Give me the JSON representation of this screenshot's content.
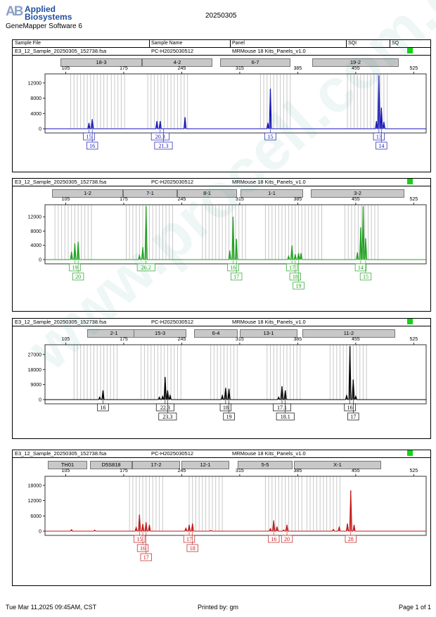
{
  "header": {
    "brand_line1": "Applied",
    "brand_line2": "Biosystems",
    "brand_mark": "AB",
    "software": "GeneMapper Software 6",
    "run_date": "20250305"
  },
  "table_header": {
    "sample_file": "Sample File",
    "sample_name": "Sample Name",
    "panel": "Panel",
    "sqi": "SQI",
    "sq": "SQ"
  },
  "sample": {
    "file": "E3_12_Sample_20250305_152738.fsa",
    "name": "PC-H2025030512",
    "panel": "MRMouse 18 Kits_Panels_v1.0",
    "sq_color": "#16d316"
  },
  "footer": {
    "datetime": "Tue Mar 11,2025 09:45AM, CST",
    "printed_by": "Printed by: gm",
    "page": "Page 1 of 1"
  },
  "watermark": "www.procell.com.cn",
  "chart_data": [
    {
      "type": "line",
      "dye": "blue",
      "color": "#1616b4",
      "x_ticks": [
        105,
        175,
        245,
        315,
        385,
        455,
        525
      ],
      "y_ticks": [
        0,
        4000,
        8000,
        12000
      ],
      "ylim": [
        0,
        14000
      ],
      "xlim": [
        80,
        540
      ],
      "loci": [
        "18-3",
        "4-2",
        "6-7",
        "19-2"
      ],
      "peaks": [
        [
          133,
          1500
        ],
        [
          137,
          2500
        ],
        [
          215,
          2000
        ],
        [
          219,
          2000
        ],
        [
          249,
          3000
        ],
        [
          349,
          1500
        ],
        [
          352,
          10500
        ],
        [
          480,
          2000
        ],
        [
          483,
          14000
        ],
        [
          486,
          5500
        ],
        [
          489,
          1800
        ]
      ],
      "calls": [
        [
          {
            "x": 133,
            "l": "15"
          },
          {
            "x": 219,
            "l": "20.3"
          },
          {
            "x": 352,
            "l": "15"
          },
          {
            "x": 483,
            "l": "13"
          }
        ],
        [
          {
            "x": 137,
            "l": "16"
          },
          {
            "x": 223,
            "l": "21.3"
          },
          {
            "x": 486,
            "l": "14"
          }
        ]
      ],
      "bins": [
        111,
        115,
        119,
        123,
        127,
        131,
        135,
        139,
        143,
        147,
        151,
        155,
        160,
        164,
        168,
        172,
        176,
        204,
        208,
        212,
        216,
        220,
        224,
        228,
        232,
        236,
        240,
        244,
        248,
        252,
        340,
        344,
        348,
        352,
        356,
        360,
        364,
        368,
        372,
        376,
        445,
        449,
        453,
        457,
        461,
        465,
        469,
        473,
        477,
        481,
        485,
        489,
        493
      ]
    },
    {
      "type": "line",
      "dye": "green",
      "color": "#20a020",
      "x_ticks": [
        105,
        175,
        245,
        315,
        385,
        455,
        525
      ],
      "y_ticks": [
        0,
        4000,
        8000,
        12000
      ],
      "ylim": [
        0,
        15000
      ],
      "xlim": [
        80,
        540
      ],
      "loci": [
        "1-2",
        "7-1",
        "8-1",
        "1-1",
        "3-2"
      ],
      "peaks": [
        [
          112,
          2200
        ],
        [
          116,
          4500
        ],
        [
          120,
          5000
        ],
        [
          194,
          1200
        ],
        [
          198,
          3500
        ],
        [
          202,
          15000
        ],
        [
          303,
          2500
        ],
        [
          307,
          12000
        ],
        [
          311,
          5800
        ],
        [
          374,
          1000
        ],
        [
          378,
          4000
        ],
        [
          382,
          1500
        ],
        [
          386,
          1800
        ],
        [
          389,
          1800
        ],
        [
          457,
          2000
        ],
        [
          461,
          9000
        ],
        [
          464,
          15000
        ],
        [
          467,
          6000
        ]
      ],
      "calls": [
        [
          {
            "x": 116,
            "l": "19"
          },
          {
            "x": 202,
            "l": "26.2"
          },
          {
            "x": 307,
            "l": "16"
          },
          {
            "x": 378,
            "l": "17"
          },
          {
            "x": 461,
            "l": "14"
          }
        ],
        [
          {
            "x": 120,
            "l": "20"
          },
          {
            "x": 311,
            "l": "17"
          },
          {
            "x": 382,
            "l": "18"
          },
          {
            "x": 467,
            "l": "15"
          }
        ],
        [
          {
            "x": 386,
            "l": "19"
          }
        ]
      ],
      "bins": [
        92,
        96,
        100,
        104,
        108,
        112,
        116,
        120,
        124,
        128,
        132,
        136,
        178,
        182,
        186,
        190,
        194,
        198,
        202,
        206,
        210,
        214,
        218,
        222,
        226,
        230,
        234,
        270,
        274,
        278,
        282,
        286,
        290,
        294,
        298,
        302,
        306,
        310,
        314,
        318,
        322,
        346,
        350,
        354,
        358,
        362,
        366,
        370,
        374,
        378,
        382,
        386,
        390,
        394,
        398,
        402,
        406,
        410,
        414,
        442,
        446,
        450,
        454,
        458,
        462,
        466,
        470,
        474,
        478,
        482
      ]
    },
    {
      "type": "line",
      "dye": "black",
      "color": "#000000",
      "x_ticks": [
        105,
        175,
        245,
        315,
        385,
        455,
        525
      ],
      "y_ticks": [
        0,
        9000,
        18000,
        27000
      ],
      "ylim": [
        0,
        32000
      ],
      "xlim": [
        80,
        540
      ],
      "loci": [
        "2-1",
        "15-3",
        "6-4",
        "13-1",
        "11-2"
      ],
      "peaks": [
        [
          146,
          1500
        ],
        [
          150,
          5500
        ],
        [
          218,
          1500
        ],
        [
          222,
          2000
        ],
        [
          225,
          13500
        ],
        [
          228,
          5500
        ],
        [
          231,
          2500
        ],
        [
          294,
          2500
        ],
        [
          298,
          7000
        ],
        [
          302,
          6500
        ],
        [
          362,
          1500
        ],
        [
          366,
          8000
        ],
        [
          370,
          5500
        ],
        [
          444,
          2500
        ],
        [
          448,
          32000
        ],
        [
          452,
          12000
        ],
        [
          455,
          2000
        ]
      ],
      "calls": [
        [
          {
            "x": 150,
            "l": "16"
          },
          {
            "x": 225,
            "l": "22.3"
          },
          {
            "x": 298,
            "l": "18"
          },
          {
            "x": 366,
            "l": "17.1"
          },
          {
            "x": 448,
            "l": "16"
          }
        ],
        [
          {
            "x": 228,
            "l": "23.3"
          },
          {
            "x": 302,
            "l": "19"
          },
          {
            "x": 370,
            "l": "18.1"
          },
          {
            "x": 452,
            "l": "17"
          }
        ]
      ],
      "bins": [
        115,
        119,
        123,
        127,
        131,
        135,
        139,
        143,
        147,
        151,
        155,
        159,
        163,
        167,
        196,
        200,
        204,
        208,
        212,
        216,
        220,
        224,
        228,
        232,
        236,
        240,
        244,
        280,
        284,
        288,
        292,
        296,
        300,
        304,
        308,
        312,
        348,
        352,
        356,
        360,
        364,
        368,
        372,
        376,
        380,
        384,
        388,
        424,
        428,
        432,
        436,
        440,
        444,
        448,
        452,
        456,
        460,
        464,
        468
      ]
    },
    {
      "type": "line",
      "dye": "red",
      "color": "#c01818",
      "x_ticks": [
        105,
        175,
        245,
        315,
        385,
        455,
        525
      ],
      "y_ticks": [
        0,
        6000,
        12000,
        18000
      ],
      "ylim": [
        0,
        21000
      ],
      "xlim": [
        80,
        540
      ],
      "loci": [
        "TH01",
        "D5S818",
        "17-2",
        "12-1",
        "5-5",
        "X-1"
      ],
      "peaks": [
        [
          112,
          600
        ],
        [
          140,
          400
        ],
        [
          190,
          1500
        ],
        [
          194,
          6500
        ],
        [
          198,
          2800
        ],
        [
          202,
          3500
        ],
        [
          206,
          2500
        ],
        [
          250,
          1200
        ],
        [
          254,
          2500
        ],
        [
          258,
          3000
        ],
        [
          280,
          300
        ],
        [
          352,
          1000
        ],
        [
          356,
          4200
        ],
        [
          360,
          1800
        ],
        [
          368,
          500
        ],
        [
          372,
          2500
        ],
        [
          428,
          700
        ],
        [
          435,
          1600
        ],
        [
          445,
          3000
        ],
        [
          449,
          16000
        ],
        [
          453,
          2500
        ]
      ],
      "calls": [
        [
          {
            "x": 194,
            "l": "15"
          },
          {
            "x": 254,
            "l": "17"
          },
          {
            "x": 356,
            "l": "16"
          },
          {
            "x": 372,
            "l": "20"
          },
          {
            "x": 449,
            "l": "28"
          }
        ],
        [
          {
            "x": 198,
            "l": "16"
          },
          {
            "x": 258,
            "l": "18"
          }
        ],
        [
          {
            "x": 202,
            "l": "17"
          }
        ]
      ],
      "bins": [
        182,
        186,
        190,
        194,
        198,
        202,
        206,
        210,
        214,
        218,
        222,
        254,
        258,
        262,
        266,
        270,
        274,
        278,
        282,
        286,
        290,
        294,
        346,
        350,
        354,
        358,
        362,
        366,
        370,
        374,
        378,
        382,
        386,
        390,
        396,
        400,
        404,
        408,
        412,
        416,
        420,
        424,
        428,
        432,
        436
      ]
    }
  ]
}
